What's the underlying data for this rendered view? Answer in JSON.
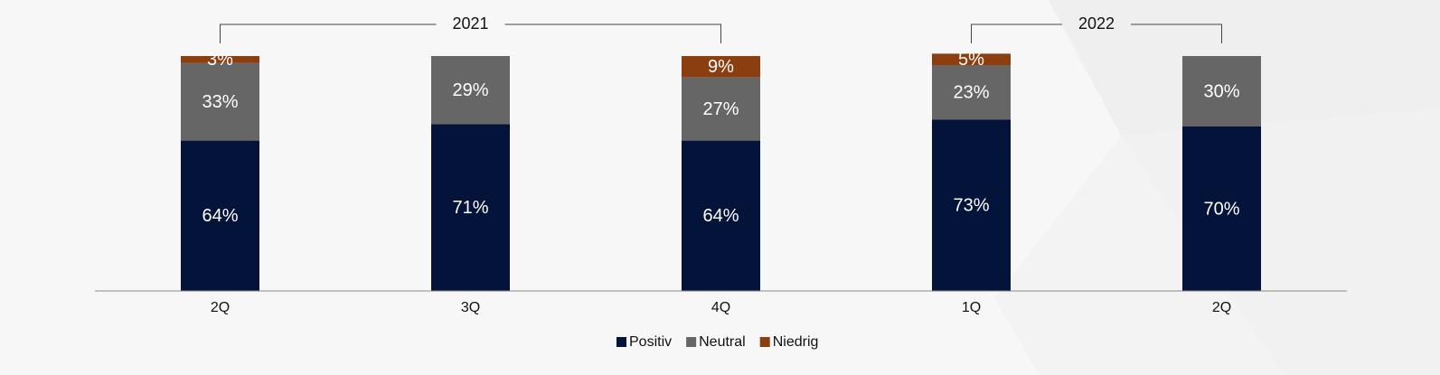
{
  "chart_data": {
    "type": "stacked-bar",
    "categories": [
      "2Q",
      "3Q",
      "4Q",
      "1Q",
      "2Q"
    ],
    "groups": [
      {
        "label": "2021",
        "start": 0,
        "end": 2
      },
      {
        "label": "2022",
        "start": 3,
        "end": 4
      }
    ],
    "series": [
      {
        "name": "Positiv",
        "color": "#03133a",
        "values": [
          64,
          71,
          64,
          73,
          70
        ],
        "value_labels": [
          "64%",
          "71%",
          "64%",
          "73%",
          "70%"
        ]
      },
      {
        "name": "Neutral",
        "color": "#666666",
        "values": [
          33,
          29,
          27,
          23,
          30
        ],
        "value_labels": [
          "33%",
          "29%",
          "27%",
          "23%",
          "30%"
        ]
      },
      {
        "name": "Niedrig",
        "color": "#8b3e0f",
        "values": [
          3,
          null,
          9,
          5,
          null
        ],
        "value_labels": [
          "3%",
          null,
          "9%",
          "5%",
          null
        ]
      }
    ],
    "ylim": [
      0,
      100
    ]
  }
}
